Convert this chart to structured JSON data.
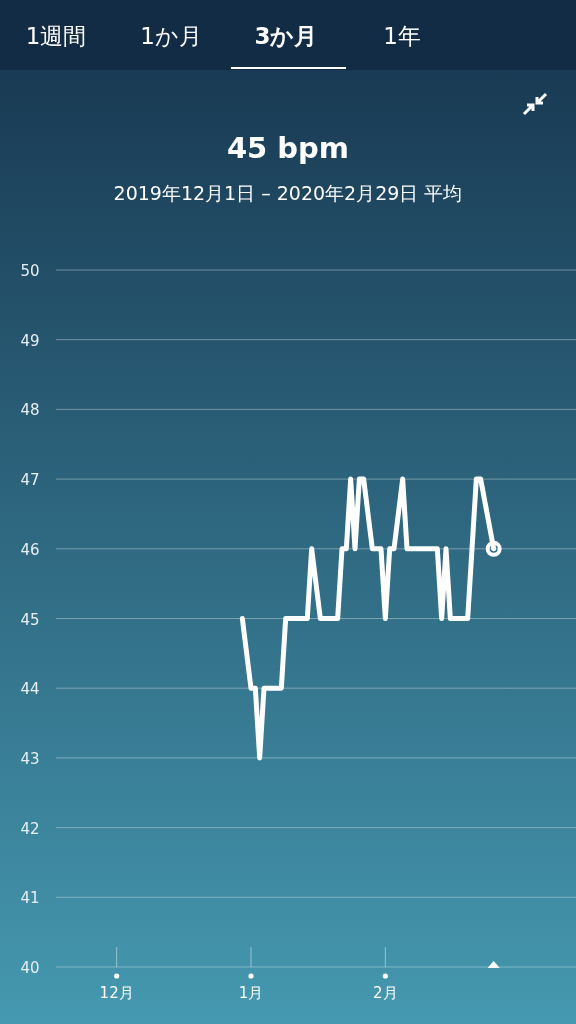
{
  "chart_data": {
    "type": "line",
    "title": "45 bpm",
    "subtitle": "2019年12月1日 – 2020年2月29日 平均",
    "annotations": [
      "1週間",
      "1か月",
      "3か月",
      "1年"
    ],
    "x": [
      "2019-12-30",
      "2020-01-01",
      "2020-01-02",
      "2020-01-03",
      "2020-01-04",
      "2020-01-08",
      "2020-01-09",
      "2020-01-14",
      "2020-01-15",
      "2020-01-17",
      "2020-01-21",
      "2020-01-22",
      "2020-01-23",
      "2020-01-24",
      "2020-01-25",
      "2020-01-26",
      "2020-01-27",
      "2020-01-29",
      "2020-01-31",
      "2020-02-01",
      "2020-02-02",
      "2020-02-03",
      "2020-02-05",
      "2020-02-06",
      "2020-02-13",
      "2020-02-14",
      "2020-02-15",
      "2020-02-16",
      "2020-02-20",
      "2020-02-22",
      "2020-02-23",
      "2020-02-26"
    ],
    "series": [
      {
        "color": "#ffffff",
        "values": [
          45,
          44,
          44,
          43,
          44,
          44,
          45,
          45,
          46,
          45,
          45,
          46,
          46,
          47,
          46,
          47,
          47,
          46,
          46,
          45,
          46,
          46,
          47,
          46,
          46,
          45,
          46,
          45,
          45,
          47,
          47,
          46
        ]
      }
    ],
    "xlim": [
      "2019-11-17",
      "2020-03-16"
    ],
    "xticks": [
      {
        "value": "2019-12-01",
        "label": "12月"
      },
      {
        "value": "2020-01-01",
        "label": "1月"
      },
      {
        "value": "2020-02-01",
        "label": "2月"
      }
    ],
    "ylim": [
      40,
      50
    ],
    "yticks": [
      40,
      41,
      42,
      43,
      44,
      45,
      46,
      47,
      48,
      49,
      50
    ],
    "grid": "y",
    "line_style": "solid"
  }
}
